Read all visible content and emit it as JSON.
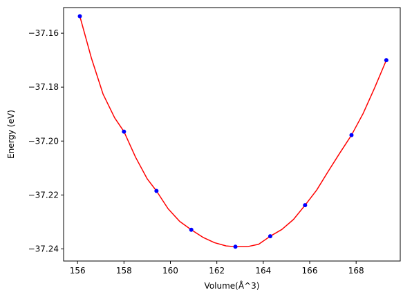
{
  "chart_data": {
    "type": "scatter",
    "title": "",
    "xlabel": "Volume(Å^3)",
    "ylabel": "Energy (eV)",
    "xlim": [
      155.4,
      169.9
    ],
    "ylim": [
      -37.2445,
      -37.1505
    ],
    "x_ticks": [
      156,
      158,
      160,
      162,
      164,
      166,
      168
    ],
    "y_ticks": [
      -37.24,
      -37.22,
      -37.2,
      -37.18,
      -37.16
    ],
    "x_tick_labels": [
      "156",
      "158",
      "160",
      "162",
      "164",
      "166",
      "168"
    ],
    "y_tick_labels": [
      "−37.24",
      "−37.22",
      "−37.20",
      "−37.18",
      "−37.16"
    ],
    "grid": false,
    "legend": "none",
    "series": [
      {
        "kind": "scatter",
        "color": "#0000ff",
        "x": [
          156.1,
          158.0,
          159.4,
          160.9,
          162.8,
          164.3,
          165.8,
          167.8,
          169.3
        ],
        "y": [
          -37.1537,
          -37.1965,
          -37.2185,
          -37.2329,
          -37.2392,
          -37.2353,
          -37.2238,
          -37.1978,
          -37.17
        ]
      },
      {
        "kind": "line",
        "color": "#ff0000",
        "x": [
          156.1,
          156.6,
          157.1,
          157.6,
          158.0,
          158.5,
          159.0,
          159.4,
          159.9,
          160.4,
          160.9,
          161.4,
          161.9,
          162.4,
          162.8,
          163.3,
          163.8,
          164.3,
          164.8,
          165.3,
          165.8,
          166.3,
          166.8,
          167.3,
          167.8,
          168.3,
          168.8,
          169.3
        ],
        "y": [
          -37.1537,
          -37.1693,
          -37.1826,
          -37.1914,
          -37.1965,
          -37.206,
          -37.214,
          -37.2185,
          -37.2251,
          -37.2298,
          -37.2329,
          -37.2357,
          -37.2377,
          -37.2389,
          -37.2392,
          -37.2392,
          -37.2383,
          -37.2353,
          -37.2328,
          -37.2291,
          -37.2238,
          -37.2182,
          -37.2112,
          -37.2044,
          -37.1978,
          -37.1898,
          -37.1802,
          -37.17
        ]
      }
    ]
  }
}
